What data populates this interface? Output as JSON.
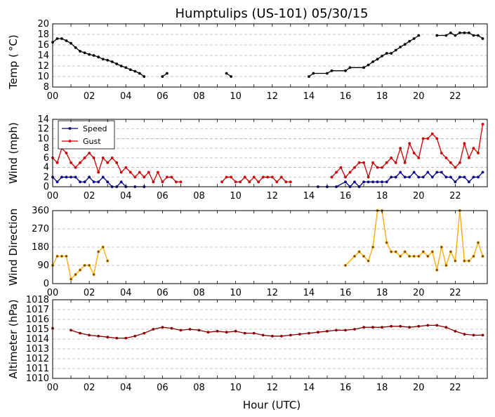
{
  "title": "Humptulips (US-101) 05/30/15",
  "xlabel": "Hour (UTC)",
  "x_tick_labels": [
    "00",
    "02",
    "04",
    "06",
    "08",
    "10",
    "12",
    "14",
    "16",
    "18",
    "20",
    "22"
  ],
  "chart_data": [
    {
      "type": "line",
      "ylabel": "Temp ( °C)",
      "ylim": [
        8,
        20
      ],
      "xlim": [
        0,
        23.75
      ],
      "yticks": [
        "8",
        "10",
        "12",
        "14",
        "16",
        "18",
        "20"
      ],
      "grid": "horizontal dashed",
      "series": [
        {
          "color": "#000000",
          "x": [
            0,
            0.25,
            0.5,
            0.75,
            1,
            1.25,
            1.5,
            1.75,
            2,
            2.25,
            2.5,
            2.75,
            3,
            3.25,
            3.5,
            3.75,
            4,
            4.25,
            4.5,
            4.75,
            5,
            6,
            6.25,
            9.5,
            9.75,
            14,
            14.25,
            15,
            15.25,
            16,
            16.25,
            17,
            17.25,
            17.5,
            17.75,
            18,
            18.25,
            18.5,
            18.75,
            19,
            19.25,
            19.5,
            19.75,
            20,
            21,
            21.5,
            21.75,
            22,
            22.25,
            22.5,
            22.75,
            23,
            23.25,
            23.5
          ],
          "y": [
            16.5,
            17.2,
            17.2,
            16.8,
            16.3,
            15.5,
            14.8,
            14.5,
            14.2,
            14,
            13.7,
            13.3,
            13.1,
            12.8,
            12.4,
            12,
            11.7,
            11.3,
            11,
            10.6,
            10,
            10,
            10.6,
            10.6,
            10,
            10,
            10.6,
            10.6,
            11.1,
            11.1,
            11.7,
            11.7,
            12.2,
            12.8,
            13.3,
            13.9,
            14.4,
            14.4,
            15,
            15.6,
            16.1,
            16.7,
            17.2,
            17.8,
            17.8,
            17.8,
            18.3,
            17.8,
            18.3,
            18.3,
            18.3,
            17.8,
            17.8,
            17.2
          ]
        }
      ]
    },
    {
      "type": "line",
      "ylabel": "Wind (mph)",
      "ylim": [
        0,
        14
      ],
      "xlim": [
        0,
        23.75
      ],
      "yticks": [
        "0",
        "2",
        "4",
        "6",
        "8",
        "10",
        "12",
        "14"
      ],
      "grid": "horizontal dashed",
      "legend": "top-left",
      "series": [
        {
          "name": "Speed",
          "color": "#00008b",
          "x": [
            0,
            0.25,
            0.5,
            0.75,
            1,
            1.25,
            1.5,
            1.75,
            2,
            2.25,
            2.5,
            2.75,
            3,
            3.25,
            3.5,
            3.75,
            4,
            4.5,
            5,
            14.5,
            15,
            15.5,
            16,
            16.25,
            16.5,
            16.75,
            17,
            17.25,
            17.5,
            17.75,
            18,
            18.25,
            18.5,
            18.75,
            19,
            19.25,
            19.5,
            19.75,
            20,
            20.25,
            20.5,
            20.75,
            21,
            21.25,
            21.5,
            21.75,
            22,
            22.25,
            22.5,
            22.75,
            23,
            23.25,
            23.5
          ],
          "y": [
            2,
            1,
            2,
            2,
            2,
            2,
            1,
            1,
            2,
            1,
            1,
            2,
            1,
            0,
            0,
            1,
            0,
            0,
            0,
            0,
            0,
            0,
            1,
            0,
            1,
            0,
            1,
            1,
            1,
            1,
            1,
            1,
            2,
            2,
            3,
            2,
            2,
            3,
            2,
            2,
            3,
            2,
            3,
            3,
            2,
            2,
            1,
            2,
            2,
            1,
            2,
            2,
            3
          ]
        },
        {
          "name": "Gust",
          "color": "#cc0000",
          "x": [
            0,
            0.25,
            0.5,
            0.75,
            1,
            1.25,
            1.5,
            1.75,
            2,
            2.25,
            2.5,
            2.75,
            3,
            3.25,
            3.5,
            3.75,
            4,
            4.25,
            4.5,
            4.75,
            5,
            5.25,
            5.5,
            5.75,
            6,
            6.25,
            6.5,
            6.75,
            7,
            9.25,
            9.5,
            9.75,
            10,
            10.25,
            10.5,
            10.75,
            11,
            11.25,
            11.5,
            11.75,
            12,
            12.25,
            12.5,
            12.75,
            13,
            15.25,
            15.5,
            15.75,
            16,
            16.25,
            16.5,
            16.75,
            17,
            17.25,
            17.5,
            17.75,
            18,
            18.25,
            18.5,
            18.75,
            19,
            19.25,
            19.5,
            19.75,
            20,
            20.25,
            20.5,
            20.75,
            21,
            21.25,
            21.5,
            21.75,
            22,
            22.25,
            22.5,
            22.75,
            23,
            23.25,
            23.5
          ],
          "y": [
            6,
            5,
            8,
            7,
            5,
            4,
            5,
            6,
            7,
            6,
            3,
            6,
            5,
            6,
            5,
            3,
            4,
            3,
            2,
            3,
            2,
            3,
            1,
            3,
            1,
            2,
            2,
            1,
            1,
            1,
            2,
            2,
            1,
            1,
            2,
            1,
            2,
            1,
            2,
            2,
            2,
            1,
            2,
            1,
            1,
            2,
            3,
            4,
            2,
            3,
            4,
            5,
            5,
            2,
            5,
            4,
            4,
            5,
            6,
            5,
            8,
            5,
            9,
            7,
            6,
            10,
            10,
            11,
            10,
            7,
            6,
            5,
            4,
            5,
            9,
            6,
            8,
            7,
            13
          ]
        }
      ]
    },
    {
      "type": "scatter",
      "ylabel": "Wind Direction",
      "ylim": [
        0,
        360
      ],
      "xlim": [
        0,
        23.75
      ],
      "yticks": [
        "0",
        "90",
        "180",
        "270",
        "360"
      ],
      "grid": "horizontal dashed",
      "series": [
        {
          "color": "#ffa500",
          "x": [
            0,
            0.25,
            0.5,
            0.75,
            1,
            1.25,
            1.5,
            1.75,
            2,
            2.25,
            2.5,
            2.75,
            3,
            16,
            16.5,
            16.75,
            17,
            17.25,
            17.5,
            17.75,
            18,
            18.25,
            18.5,
            18.75,
            19,
            19.25,
            19.5,
            19.75,
            20,
            20.25,
            20.5,
            20.75,
            21,
            21.25,
            21.5,
            21.75,
            22,
            22.25,
            22.5,
            22.75,
            23,
            23.25,
            23.5
          ],
          "y": [
            90,
            135,
            135,
            135,
            22,
            45,
            67,
            90,
            90,
            45,
            157,
            180,
            112,
            90,
            135,
            157,
            135,
            112,
            180,
            360,
            360,
            202,
            157,
            157,
            135,
            157,
            135,
            135,
            135,
            157,
            135,
            157,
            67,
            180,
            90,
            157,
            112,
            360,
            112,
            112,
            135,
            202,
            135
          ]
        }
      ]
    },
    {
      "type": "line",
      "ylabel": "Altimeter (hPa)",
      "ylim": [
        1010,
        1018
      ],
      "xlim": [
        0,
        23.75
      ],
      "yticks": [
        "1010",
        "1011",
        "1012",
        "1013",
        "1014",
        "1015",
        "1016",
        "1017",
        "1018"
      ],
      "grid": "horizontal dashed",
      "series": [
        {
          "color": "#8b0000",
          "x": [
            0,
            1,
            1.5,
            2,
            2.5,
            3,
            3.5,
            4,
            4.5,
            5,
            5.5,
            6,
            6.5,
            7,
            7.5,
            8,
            8.5,
            9,
            9.5,
            10,
            10.5,
            11,
            11.5,
            12,
            12.5,
            13,
            13.5,
            14,
            14.5,
            15,
            15.5,
            16,
            16.5,
            17,
            17.5,
            18,
            18.5,
            19,
            19.5,
            20,
            20.5,
            21,
            21.5,
            22,
            22.5,
            23,
            23.5
          ],
          "y": [
            1015.1,
            1014.9,
            1014.6,
            1014.4,
            1014.3,
            1014.2,
            1014.1,
            1014.1,
            1014.3,
            1014.6,
            1015.0,
            1015.2,
            1015.1,
            1014.9,
            1015.0,
            1014.9,
            1014.7,
            1014.8,
            1014.7,
            1014.8,
            1014.6,
            1014.6,
            1014.4,
            1014.3,
            1014.3,
            1014.4,
            1014.5,
            1014.6,
            1014.7,
            1014.8,
            1014.9,
            1014.9,
            1015.0,
            1015.2,
            1015.2,
            1015.2,
            1015.3,
            1015.3,
            1015.2,
            1015.3,
            1015.4,
            1015.4,
            1015.2,
            1014.8,
            1014.5,
            1014.4,
            1014.4
          ]
        }
      ]
    }
  ]
}
